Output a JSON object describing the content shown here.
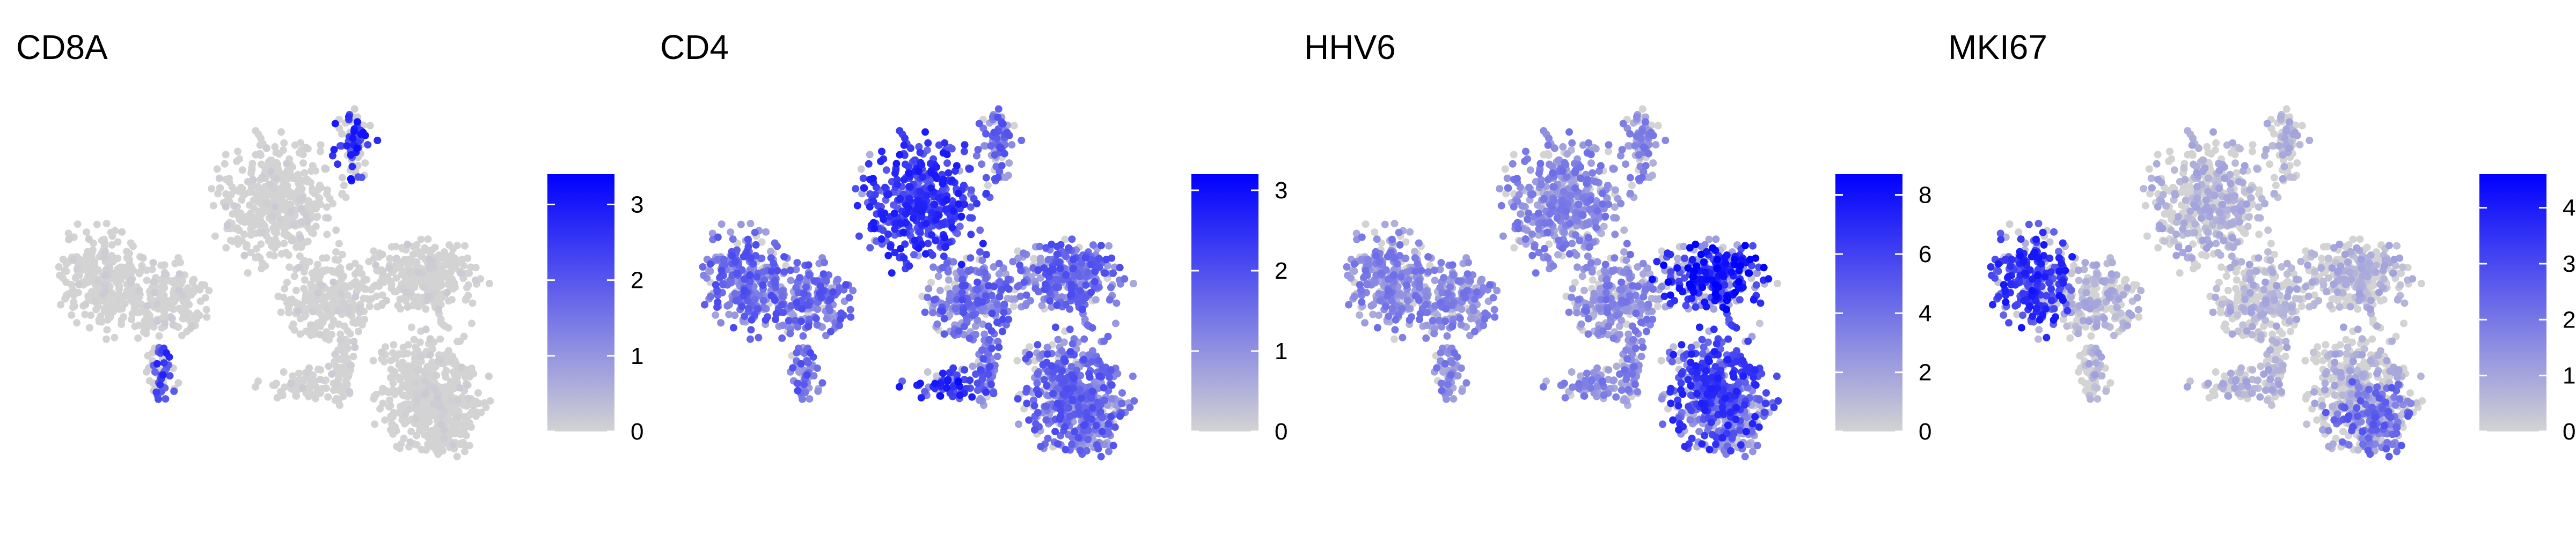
{
  "chart_data": {
    "type": "scatter",
    "description_of_axes": "",
    "color_scale": {
      "low": "#d3d3d3",
      "high": "#0000ff"
    },
    "panels": [
      {
        "title": "CD8A",
        "scale": {
          "min": 0,
          "max": 3.4,
          "ticks": [
            0,
            1,
            2,
            3
          ]
        },
        "hotspots": [
          {
            "region": "top-right-lobe",
            "value": 3.0,
            "spread": 0.55
          },
          {
            "region": "lower-left-arm",
            "value": 2.6,
            "spread": 0.5
          }
        ],
        "base_level": 0.1,
        "noise_fraction": 0.08
      },
      {
        "title": "CD4",
        "scale": {
          "min": 0,
          "max": 3.2,
          "ticks": [
            0,
            1,
            2,
            3
          ]
        },
        "hotspots": [
          {
            "region": "top-center",
            "value": 2.6,
            "spread": 0.9
          },
          {
            "region": "bottom-center",
            "value": 2.8,
            "spread": 0.7
          }
        ],
        "base_level": 1.5,
        "noise_fraction": 0.9
      },
      {
        "title": "HHV6",
        "scale": {
          "min": 0,
          "max": 8.7,
          "ticks": [
            0,
            2,
            4,
            6,
            8
          ]
        },
        "hotspots": [
          {
            "region": "right-upper",
            "value": 8.5,
            "spread": 0.6
          },
          {
            "region": "right-lower",
            "value": 6.8,
            "spread": 0.8
          }
        ],
        "base_level": 3.0,
        "noise_fraction": 0.85
      },
      {
        "title": "MKI67",
        "scale": {
          "min": 0,
          "max": 4.6,
          "ticks": [
            0,
            1,
            2,
            3,
            4
          ]
        },
        "hotspots": [
          {
            "region": "left-lobe",
            "value": 3.8,
            "spread": 0.7
          },
          {
            "region": "bottom-right",
            "value": 2.6,
            "spread": 0.8
          }
        ],
        "base_level": 0.8,
        "noise_fraction": 0.45
      }
    ]
  }
}
